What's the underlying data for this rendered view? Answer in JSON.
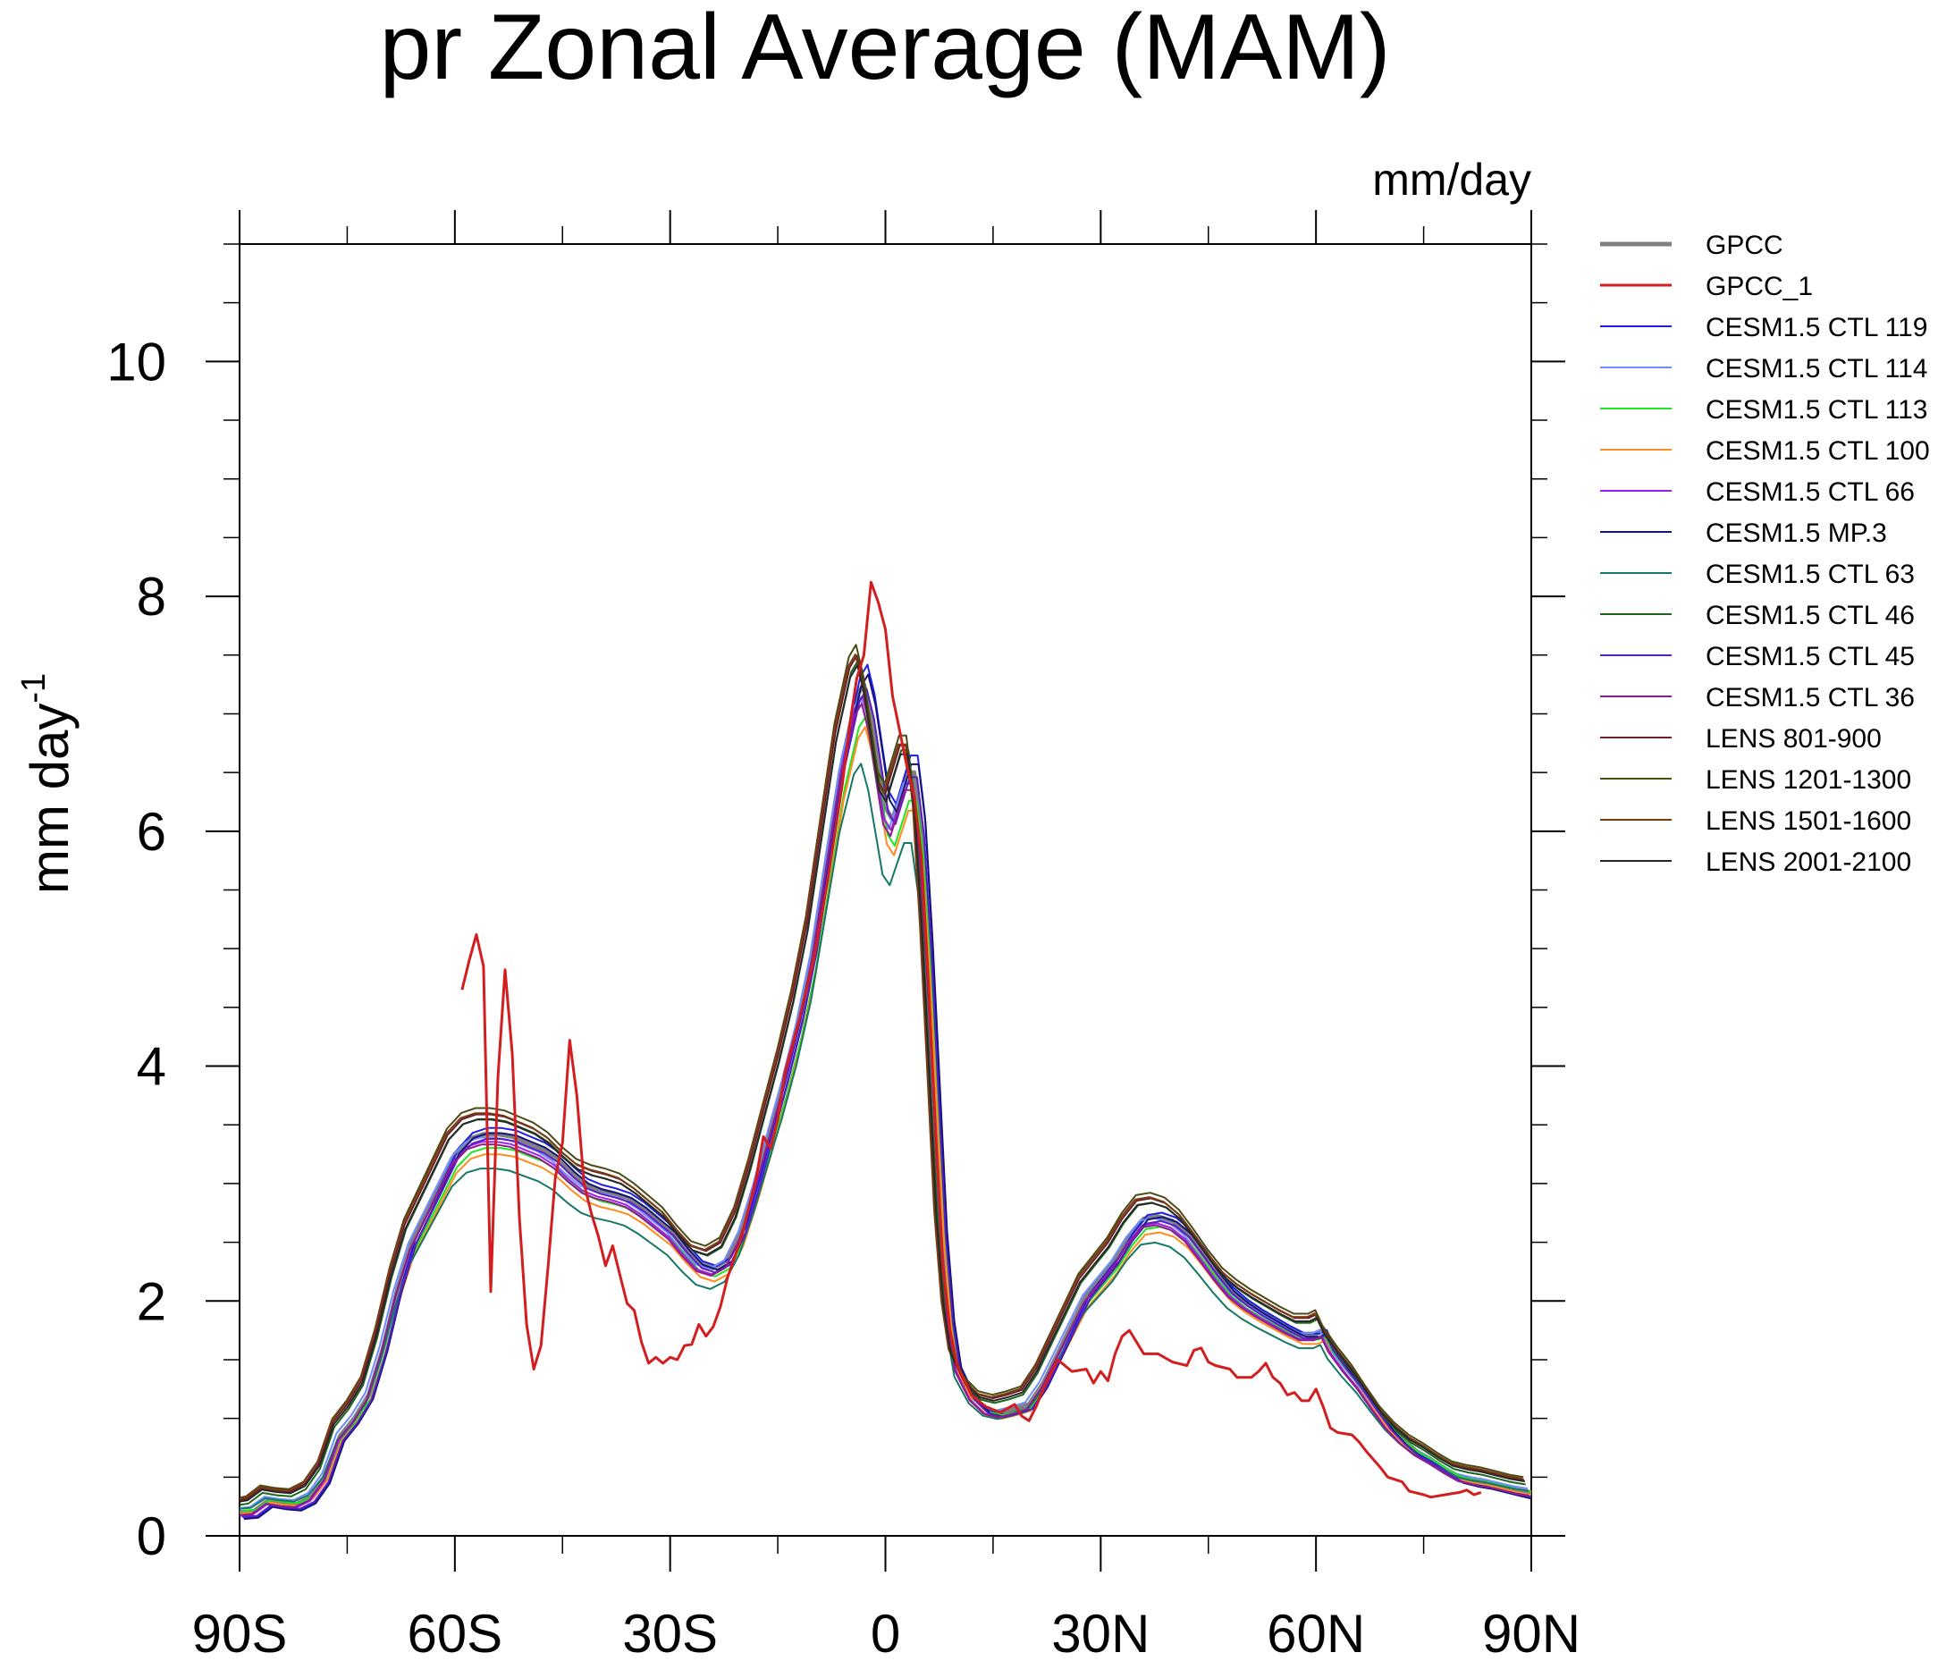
{
  "chart_data": {
    "type": "line",
    "title": "pr Zonal Average (MAM)",
    "units_label": "mm/day",
    "ylabel_main": "mm day",
    "ylabel_sup": "-1",
    "xlabel": "",
    "xlim": [
      -90,
      90
    ],
    "ylim": [
      0,
      11
    ],
    "xticks": [
      {
        "value": -90,
        "label": "90S"
      },
      {
        "value": -60,
        "label": "60S"
      },
      {
        "value": -30,
        "label": "30S"
      },
      {
        "value": 0,
        "label": "0"
      },
      {
        "value": 30,
        "label": "30N"
      },
      {
        "value": 60,
        "label": "60N"
      },
      {
        "value": 90,
        "label": "90N"
      }
    ],
    "yticks": [
      {
        "value": 0,
        "label": "0"
      },
      {
        "value": 2,
        "label": "2"
      },
      {
        "value": 4,
        "label": "4"
      },
      {
        "value": 6,
        "label": "6"
      },
      {
        "value": 8,
        "label": "8"
      },
      {
        "value": 10,
        "label": "10"
      }
    ],
    "base_profile": [
      [
        -90,
        0.2
      ],
      [
        -88,
        0.21
      ],
      [
        -86,
        0.3
      ],
      [
        -84,
        0.28
      ],
      [
        -82,
        0.27
      ],
      [
        -80,
        0.33
      ],
      [
        -78,
        0.5
      ],
      [
        -76,
        0.85
      ],
      [
        -74,
        1.0
      ],
      [
        -72,
        1.2
      ],
      [
        -70,
        1.6
      ],
      [
        -68,
        2.1
      ],
      [
        -66,
        2.5
      ],
      [
        -64,
        2.75
      ],
      [
        -62,
        3.0
      ],
      [
        -60,
        3.25
      ],
      [
        -58,
        3.38
      ],
      [
        -56,
        3.42
      ],
      [
        -54,
        3.42
      ],
      [
        -52,
        3.4
      ],
      [
        -50,
        3.35
      ],
      [
        -48,
        3.3
      ],
      [
        -46,
        3.22
      ],
      [
        -44,
        3.1
      ],
      [
        -42,
        3.0
      ],
      [
        -40,
        2.95
      ],
      [
        -38,
        2.92
      ],
      [
        -36,
        2.88
      ],
      [
        -34,
        2.8
      ],
      [
        -32,
        2.7
      ],
      [
        -30,
        2.6
      ],
      [
        -28,
        2.45
      ],
      [
        -26,
        2.32
      ],
      [
        -24,
        2.28
      ],
      [
        -22,
        2.35
      ],
      [
        -20,
        2.6
      ],
      [
        -18,
        3.0
      ],
      [
        -16,
        3.45
      ],
      [
        -14,
        3.9
      ],
      [
        -12,
        4.4
      ],
      [
        -10,
        5.0
      ],
      [
        -8,
        5.8
      ],
      [
        -6,
        6.6
      ],
      [
        -4,
        7.15
      ],
      [
        -3,
        7.25
      ],
      [
        -2,
        7.0
      ],
      [
        -1,
        6.6
      ],
      [
        0,
        6.2
      ],
      [
        1,
        6.1
      ],
      [
        2,
        6.3
      ],
      [
        3,
        6.5
      ],
      [
        4,
        6.5
      ],
      [
        5,
        6.0
      ],
      [
        6,
        5.0
      ],
      [
        7,
        3.8
      ],
      [
        8,
        2.6
      ],
      [
        9,
        1.85
      ],
      [
        10,
        1.45
      ],
      [
        12,
        1.2
      ],
      [
        14,
        1.08
      ],
      [
        16,
        1.05
      ],
      [
        18,
        1.08
      ],
      [
        20,
        1.12
      ],
      [
        22,
        1.3
      ],
      [
        24,
        1.55
      ],
      [
        26,
        1.8
      ],
      [
        28,
        2.05
      ],
      [
        30,
        2.2
      ],
      [
        32,
        2.35
      ],
      [
        34,
        2.55
      ],
      [
        36,
        2.7
      ],
      [
        38,
        2.72
      ],
      [
        40,
        2.68
      ],
      [
        42,
        2.58
      ],
      [
        44,
        2.42
      ],
      [
        46,
        2.25
      ],
      [
        48,
        2.1
      ],
      [
        50,
        2.0
      ],
      [
        52,
        1.92
      ],
      [
        54,
        1.85
      ],
      [
        56,
        1.78
      ],
      [
        58,
        1.72
      ],
      [
        60,
        1.72
      ],
      [
        61,
        1.75
      ],
      [
        62,
        1.62
      ],
      [
        64,
        1.45
      ],
      [
        66,
        1.3
      ],
      [
        68,
        1.12
      ],
      [
        70,
        0.95
      ],
      [
        72,
        0.82
      ],
      [
        74,
        0.72
      ],
      [
        76,
        0.65
      ],
      [
        78,
        0.57
      ],
      [
        80,
        0.5
      ],
      [
        82,
        0.47
      ],
      [
        84,
        0.45
      ],
      [
        86,
        0.42
      ],
      [
        88,
        0.39
      ],
      [
        90,
        0.37
      ]
    ],
    "gpcc_1": [
      [
        -59,
        4.65
      ],
      [
        -58,
        4.9
      ],
      [
        -57,
        5.12
      ],
      [
        -56,
        4.85
      ],
      [
        -55,
        2.08
      ],
      [
        -54,
        3.9
      ],
      [
        -53,
        4.82
      ],
      [
        -52,
        4.1
      ],
      [
        -51,
        2.7
      ],
      [
        -50,
        1.8
      ],
      [
        -49,
        1.42
      ],
      [
        -48,
        1.62
      ],
      [
        -47,
        2.3
      ],
      [
        -46,
        3.05
      ],
      [
        -45,
        3.35
      ],
      [
        -44,
        4.22
      ],
      [
        -43,
        3.75
      ],
      [
        -42,
        3.0
      ],
      [
        -41,
        2.75
      ],
      [
        -40,
        2.55
      ],
      [
        -39,
        2.3
      ],
      [
        -38,
        2.47
      ],
      [
        -37,
        2.22
      ],
      [
        -36,
        1.98
      ],
      [
        -35,
        1.92
      ],
      [
        -34,
        1.65
      ],
      [
        -33,
        1.47
      ],
      [
        -32,
        1.52
      ],
      [
        -31,
        1.47
      ],
      [
        -30,
        1.52
      ],
      [
        -29,
        1.5
      ],
      [
        -28,
        1.62
      ],
      [
        -27,
        1.63
      ],
      [
        -26,
        1.8
      ],
      [
        -25,
        1.7
      ],
      [
        -24,
        1.78
      ],
      [
        -23,
        1.95
      ],
      [
        -22,
        2.2
      ],
      [
        -20,
        2.55
      ],
      [
        -18,
        3.05
      ],
      [
        -17,
        3.4
      ],
      [
        -16,
        3.3
      ],
      [
        -15,
        3.55
      ],
      [
        -14,
        3.95
      ],
      [
        -12,
        4.4
      ],
      [
        -10,
        4.9
      ],
      [
        -8,
        5.6
      ],
      [
        -6,
        6.4
      ],
      [
        -5,
        6.9
      ],
      [
        -4,
        7.3
      ],
      [
        -3,
        7.5
      ],
      [
        -2,
        8.12
      ],
      [
        -1,
        7.95
      ],
      [
        0,
        7.72
      ],
      [
        1,
        7.15
      ],
      [
        2,
        6.85
      ],
      [
        3,
        6.55
      ],
      [
        4,
        6.3
      ],
      [
        5,
        5.8
      ],
      [
        6,
        4.7
      ],
      [
        7,
        3.4
      ],
      [
        8,
        2.3
      ],
      [
        9,
        1.75
      ],
      [
        10,
        1.45
      ],
      [
        12,
        1.2
      ],
      [
        14,
        1.1
      ],
      [
        16,
        1.05
      ],
      [
        18,
        1.12
      ],
      [
        19,
        1.02
      ],
      [
        20,
        0.98
      ],
      [
        21,
        1.1
      ],
      [
        22,
        1.25
      ],
      [
        24,
        1.5
      ],
      [
        26,
        1.4
      ],
      [
        28,
        1.42
      ],
      [
        29,
        1.3
      ],
      [
        30,
        1.4
      ],
      [
        31,
        1.32
      ],
      [
        32,
        1.55
      ],
      [
        33,
        1.7
      ],
      [
        34,
        1.75
      ],
      [
        35,
        1.65
      ],
      [
        36,
        1.55
      ],
      [
        38,
        1.55
      ],
      [
        40,
        1.48
      ],
      [
        42,
        1.45
      ],
      [
        43,
        1.58
      ],
      [
        44,
        1.6
      ],
      [
        45,
        1.48
      ],
      [
        46,
        1.45
      ],
      [
        48,
        1.42
      ],
      [
        49,
        1.35
      ],
      [
        51,
        1.35
      ],
      [
        52,
        1.4
      ],
      [
        53,
        1.47
      ],
      [
        54,
        1.35
      ],
      [
        55,
        1.3
      ],
      [
        56,
        1.2
      ],
      [
        57,
        1.22
      ],
      [
        58,
        1.15
      ],
      [
        59,
        1.15
      ],
      [
        60,
        1.25
      ],
      [
        61,
        1.1
      ],
      [
        62,
        0.92
      ],
      [
        63,
        0.88
      ],
      [
        65,
        0.86
      ],
      [
        66,
        0.8
      ],
      [
        67,
        0.72
      ],
      [
        68,
        0.65
      ],
      [
        69,
        0.58
      ],
      [
        70,
        0.5
      ],
      [
        72,
        0.46
      ],
      [
        73,
        0.38
      ],
      [
        75,
        0.35
      ],
      [
        76,
        0.33
      ],
      [
        78,
        0.35
      ],
      [
        80,
        0.37
      ],
      [
        81,
        0.39
      ],
      [
        82,
        0.35
      ],
      [
        83,
        0.37
      ]
    ],
    "series": [
      {
        "name": "GPCC",
        "color": "#808080",
        "dx": 0,
        "dy": 0.0,
        "scale": 1.0,
        "width": 5
      },
      {
        "name": "GPCC_1",
        "color": "#d21e1e",
        "source": "gpcc_1",
        "width": 3
      },
      {
        "name": "CESM1.5 CTL 119",
        "color": "#1e1ee6",
        "dx": 0.5,
        "dy": -0.05,
        "scale": 1.03,
        "width": 2
      },
      {
        "name": "CESM1.5 CTL 114",
        "color": "#6e8cff",
        "dx": -0.5,
        "dy": 0.04,
        "scale": 0.98,
        "width": 2
      },
      {
        "name": "CESM1.5 CTL 113",
        "color": "#1ee61e",
        "dx": 0.3,
        "dy": 0.02,
        "scale": 0.96,
        "width": 2
      },
      {
        "name": "CESM1.5 CTL 100",
        "color": "#ff8c1e",
        "dx": 0.2,
        "dy": 0.0,
        "scale": 0.95,
        "width": 2
      },
      {
        "name": "CESM1.5 CTL 66",
        "color": "#a01ee6",
        "dx": -0.2,
        "dy": -0.03,
        "scale": 0.99,
        "width": 2
      },
      {
        "name": "CESM1.5 MP.3",
        "color": "#14147a",
        "dx": 0.6,
        "dy": -0.06,
        "scale": 1.02,
        "width": 2
      },
      {
        "name": "CESM1.5 CTL 63",
        "color": "#147864",
        "dx": -0.4,
        "dy": 0.05,
        "scale": 0.9,
        "width": 2
      },
      {
        "name": "CESM1.5 CTL 46",
        "color": "#1e641e",
        "dx": -0.8,
        "dy": 0.06,
        "scale": 1.02,
        "width": 2
      },
      {
        "name": "CESM1.5 CTL 45",
        "color": "#5a1ec8",
        "dx": 0.4,
        "dy": -0.04,
        "scale": 1.0,
        "width": 2
      },
      {
        "name": "CESM1.5 CTL 36",
        "color": "#8c1e8c",
        "dx": -0.3,
        "dy": -0.02,
        "scale": 0.98,
        "width": 2
      },
      {
        "name": "LENS 801-900",
        "color": "#6e1e28",
        "dx": -1.0,
        "dy": 0.1,
        "scale": 1.02,
        "width": 2
      },
      {
        "name": "LENS 1201-1300",
        "color": "#4b4b14",
        "dx": -1.1,
        "dy": 0.12,
        "scale": 1.03,
        "width": 2
      },
      {
        "name": "LENS 1501-1600",
        "color": "#783c14",
        "dx": -1.2,
        "dy": 0.11,
        "scale": 1.02,
        "width": 2
      },
      {
        "name": "LENS 2001-2100",
        "color": "#282828",
        "dx": -0.9,
        "dy": 0.09,
        "scale": 1.01,
        "width": 2
      }
    ]
  }
}
